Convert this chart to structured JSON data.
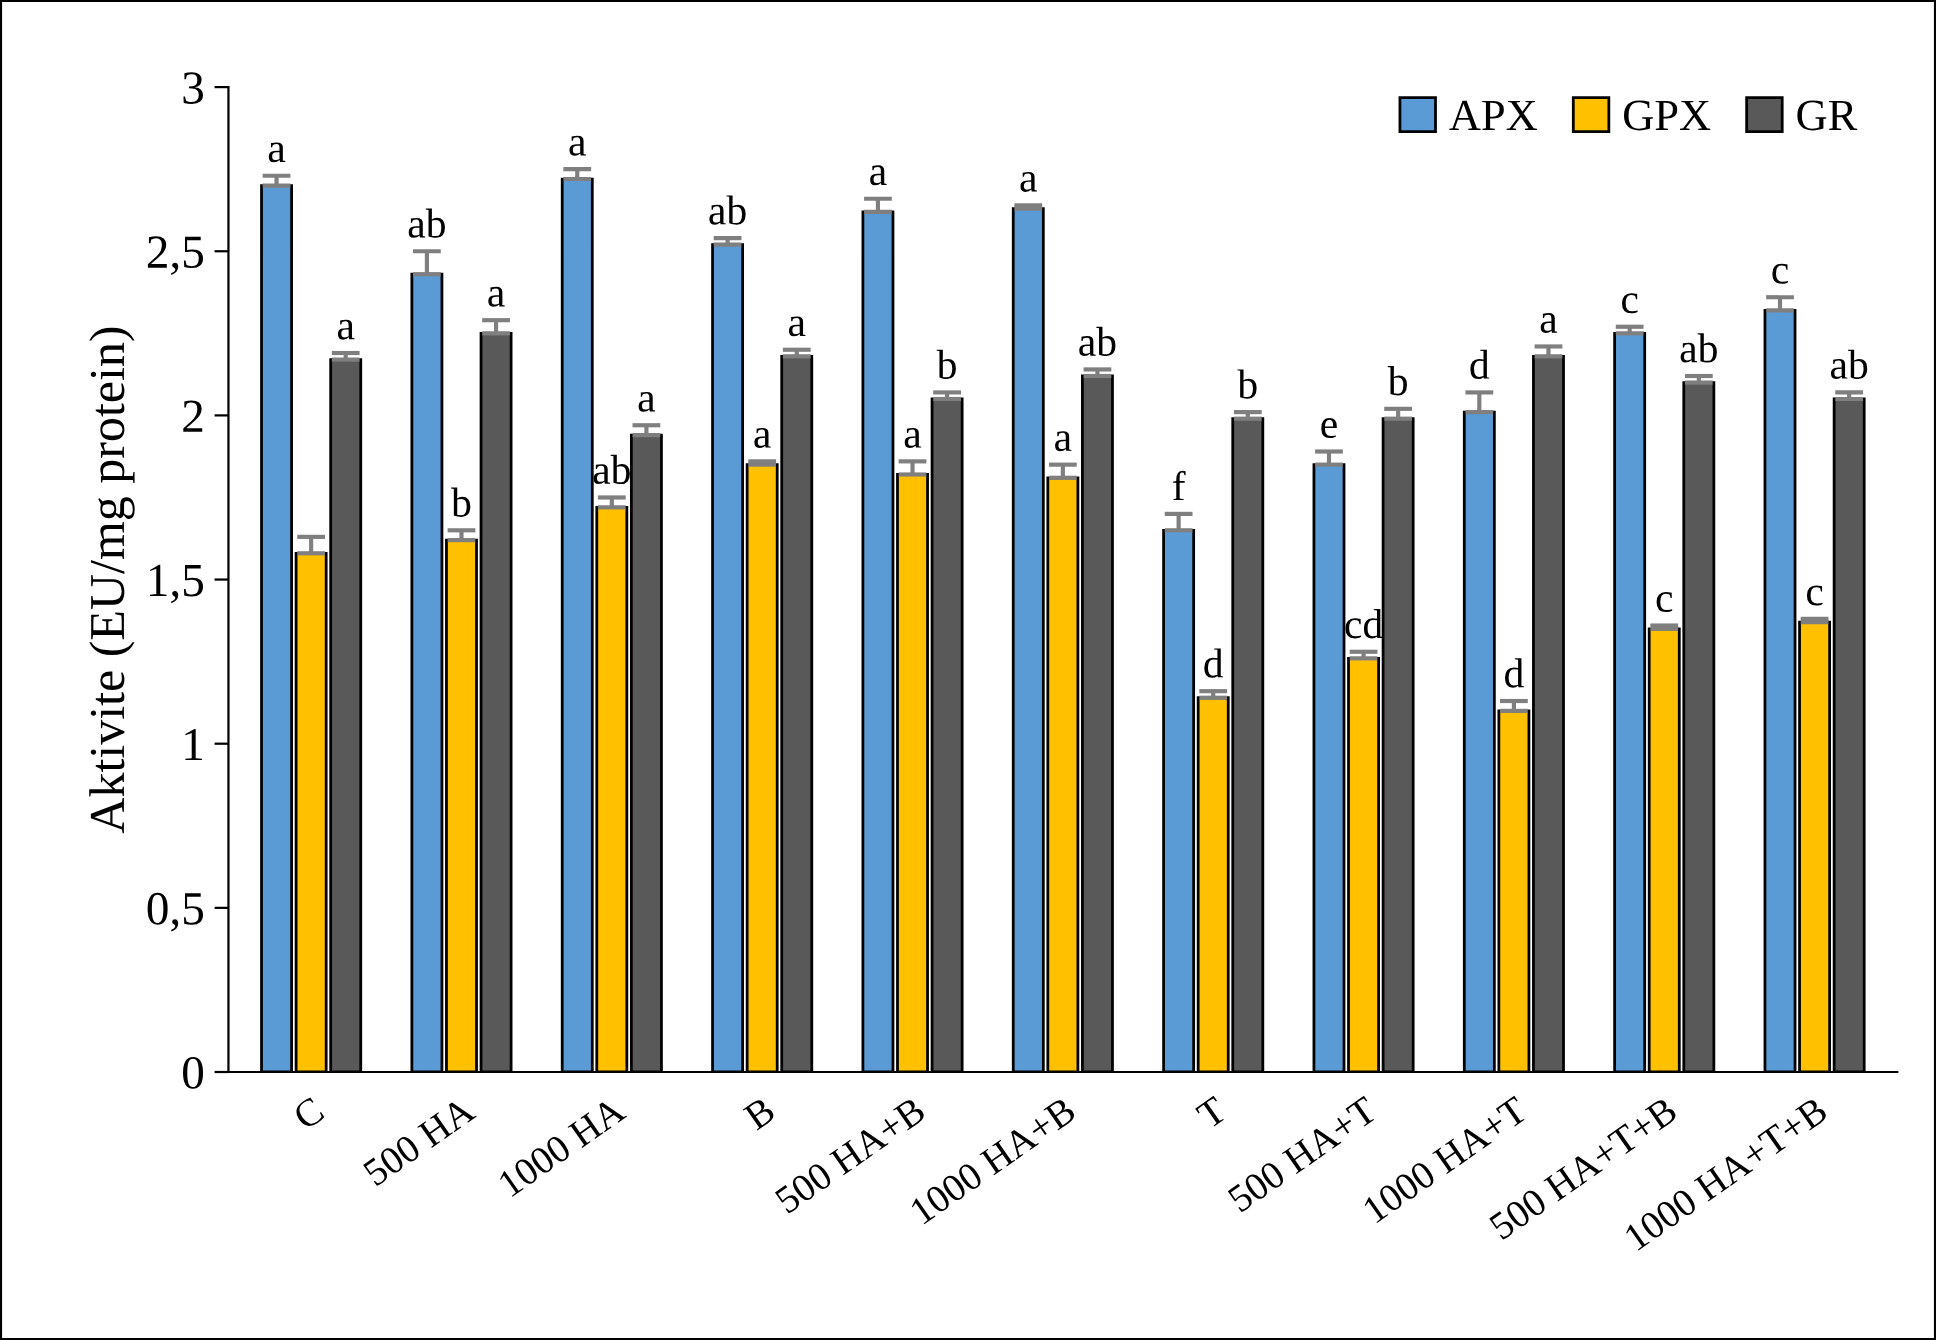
{
  "chart_data": {
    "type": "bar",
    "ylabel": "Aktivite (EU/mg protein)",
    "categories": [
      "C",
      "500 HA",
      "1000 HA",
      "B",
      "500 HA+B",
      "1000 HA+B",
      "T",
      "500 HA+T",
      "1000 HA+T",
      "500 HA+T+B",
      "1000 HA+T+B"
    ],
    "series": [
      {
        "name": "APX",
        "color": "#5b9bd5",
        "values": [
          2.7,
          2.43,
          2.72,
          2.52,
          2.62,
          2.63,
          1.65,
          1.85,
          2.01,
          2.25,
          2.32
        ],
        "errors": [
          0.03,
          0.07,
          0.03,
          0.02,
          0.04,
          0.01,
          0.05,
          0.04,
          0.06,
          0.02,
          0.04
        ],
        "value_labels": [
          "a",
          "ab",
          "a",
          "ab",
          "a",
          "a",
          "f",
          "e",
          "d",
          "c",
          "c"
        ]
      },
      {
        "name": "GPX",
        "color": "#ffc000",
        "values": [
          1.58,
          1.62,
          1.72,
          1.85,
          1.82,
          1.81,
          1.14,
          1.26,
          1.1,
          1.35,
          1.37
        ],
        "errors": [
          0.05,
          0.03,
          0.03,
          0.01,
          0.04,
          0.04,
          0.02,
          0.02,
          0.03,
          0.01,
          0.01
        ],
        "value_labels": [
          null,
          "b",
          "ab",
          "a",
          "a",
          "a",
          "d",
          "cd",
          "d",
          "c",
          "c"
        ]
      },
      {
        "name": "GR",
        "color": "#595959",
        "values": [
          2.17,
          2.25,
          1.94,
          2.18,
          2.05,
          2.12,
          1.99,
          1.99,
          2.18,
          2.1,
          2.05
        ],
        "errors": [
          0.02,
          0.04,
          0.03,
          0.02,
          0.02,
          0.02,
          0.02,
          0.03,
          0.03,
          0.02,
          0.02
        ],
        "value_labels": [
          "a",
          "a",
          "a",
          "a",
          "b",
          "ab",
          "b",
          "b",
          "a",
          "ab",
          "ab"
        ]
      }
    ],
    "ylim": [
      0,
      3
    ],
    "yticks": [
      0,
      {
        "value": 0.5,
        "label": "0,5"
      },
      1,
      {
        "value": 1.5,
        "label": "1,5"
      },
      2,
      {
        "value": 2.5,
        "label": "2,5"
      },
      3
    ],
    "grid": false,
    "legend": "top right"
  }
}
